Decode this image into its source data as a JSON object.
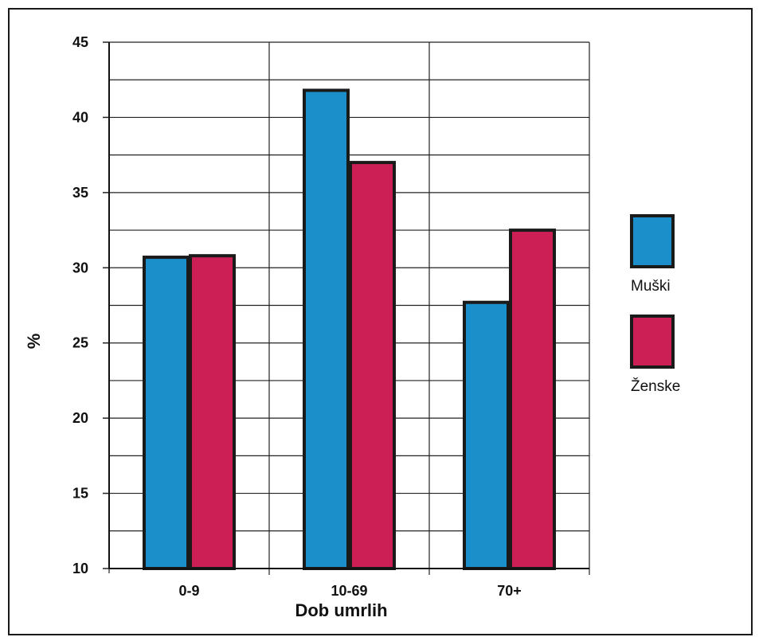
{
  "chart_data": {
    "type": "bar",
    "categories": [
      "0-9",
      "10-69",
      "70+"
    ],
    "series": [
      {
        "name": "Muški",
        "values": [
          30.7,
          41.8,
          27.7
        ],
        "color": "#1b8fc9"
      },
      {
        "name": "Ženske",
        "values": [
          30.8,
          37.0,
          32.5
        ],
        "color": "#cc1f55"
      }
    ],
    "xlabel": "Dob umrlih",
    "ylabel": "%",
    "ylim": [
      10,
      45
    ],
    "yticks": [
      10,
      15,
      20,
      25,
      30,
      35,
      40,
      45
    ],
    "grid": true,
    "legend_position": "right"
  }
}
